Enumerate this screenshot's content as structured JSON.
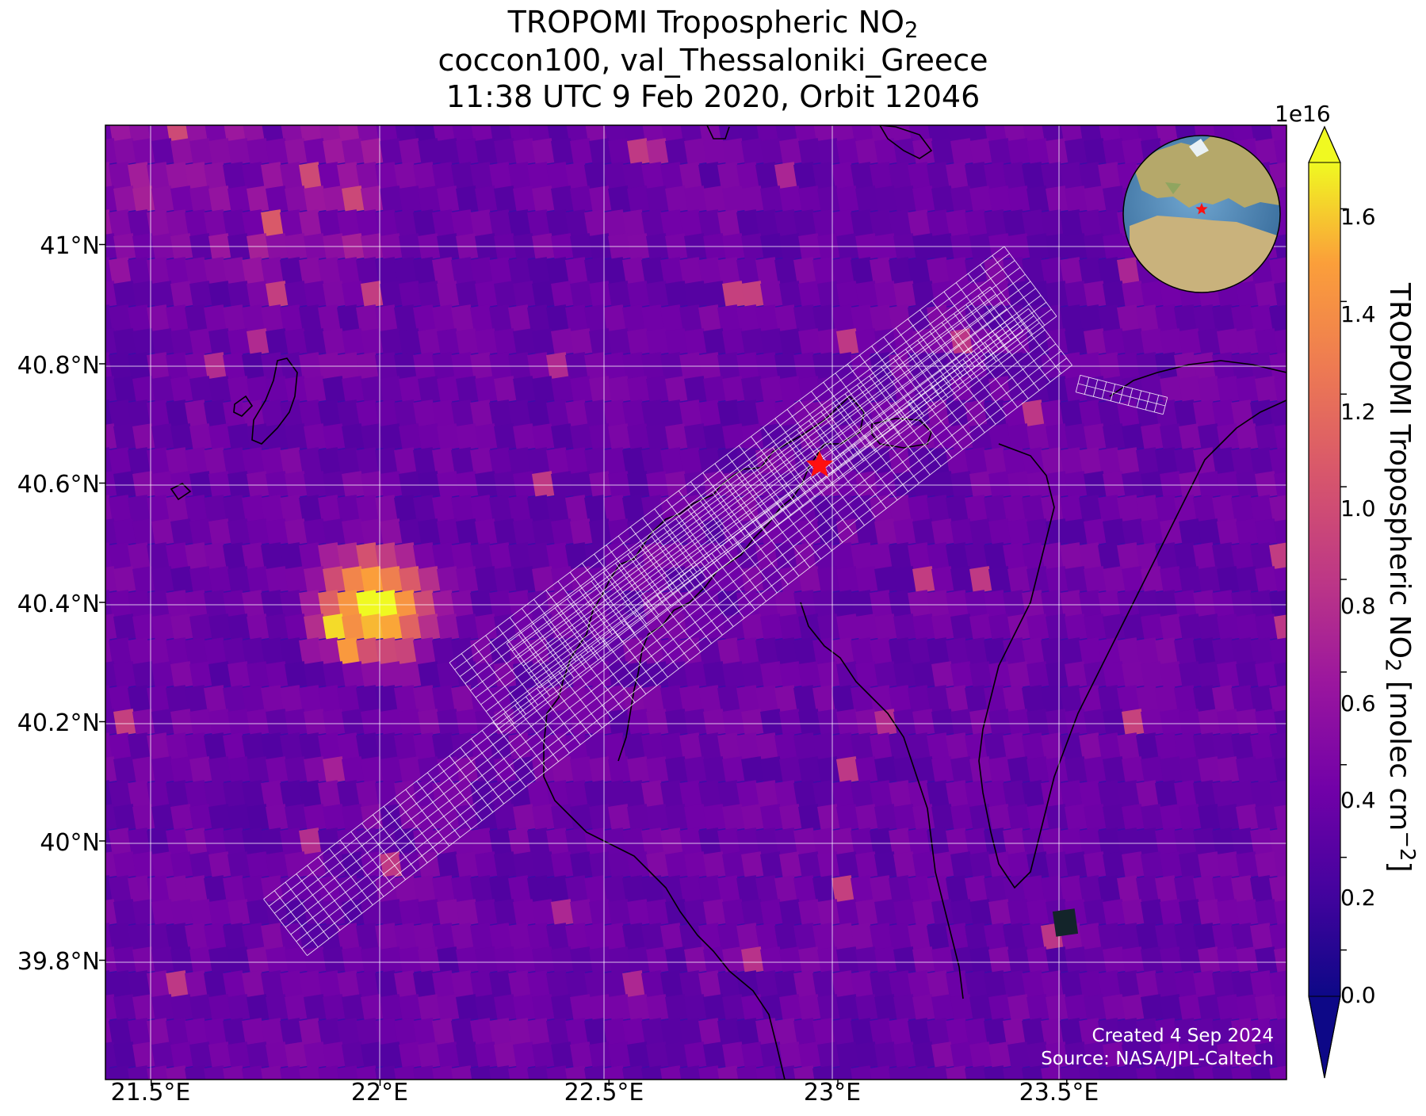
{
  "title": {
    "line1_prefix": "TROPOMI Tropospheric NO",
    "line1_sub": "2",
    "line2": "coccon100, val_Thessaloniki_Greece",
    "line3": "11:38 UTC 9 Feb 2020, Orbit 12046"
  },
  "map": {
    "projection": "PlateCarree",
    "lon_range": [
      21.4,
      23.98
    ],
    "lat_range": [
      39.6,
      41.2
    ],
    "background_color": "#3d0ca8",
    "gridlines": true,
    "coastlines": true,
    "site_marker": {
      "name": "Thessaloniki",
      "lon": 22.96,
      "lat": 40.63,
      "symbol": "star",
      "color": "#ff1010"
    },
    "footprint_overlay": {
      "color": "#ffffff",
      "description_visible": false
    },
    "hotspot": {
      "lon": 21.96,
      "lat": 40.41
    }
  },
  "axes": {
    "y_ticks": [
      "41°N",
      "40.8°N",
      "40.6°N",
      "40.4°N",
      "40.2°N",
      "40°N",
      "39.8°N"
    ],
    "y_tick_values": [
      41.0,
      40.8,
      40.6,
      40.4,
      40.2,
      40.0,
      39.8
    ],
    "x_ticks": [
      "21.5°E",
      "22°E",
      "22.5°E",
      "23°E",
      "23.5°E"
    ],
    "x_tick_values": [
      21.5,
      22.0,
      22.5,
      23.0,
      23.5
    ]
  },
  "colorbar": {
    "colormap": "plasma",
    "exponent_label": "1e16",
    "label_prefix": "TROPOMI Tropospheric NO",
    "label_sub": "2",
    "label_mid": " [molec cm",
    "label_sup": "−2",
    "label_suffix": "]",
    "ticks": [
      "1.6",
      "1.4",
      "1.2",
      "1.0",
      "0.8",
      "0.6",
      "0.4",
      "0.2",
      "0.0"
    ],
    "tick_values": [
      1.6,
      1.4,
      1.2,
      1.0,
      0.8,
      0.6,
      0.4,
      0.2,
      0.0
    ],
    "range": [
      -0.1,
      1.7
    ],
    "extend": "both"
  },
  "credits": {
    "created": "Created 4 Sep 2024",
    "source": "Source: NASA/JPL-Caltech"
  },
  "inset_globe": {
    "centered_on": "Europe/Africa",
    "marker_color": "#ff1010"
  }
}
